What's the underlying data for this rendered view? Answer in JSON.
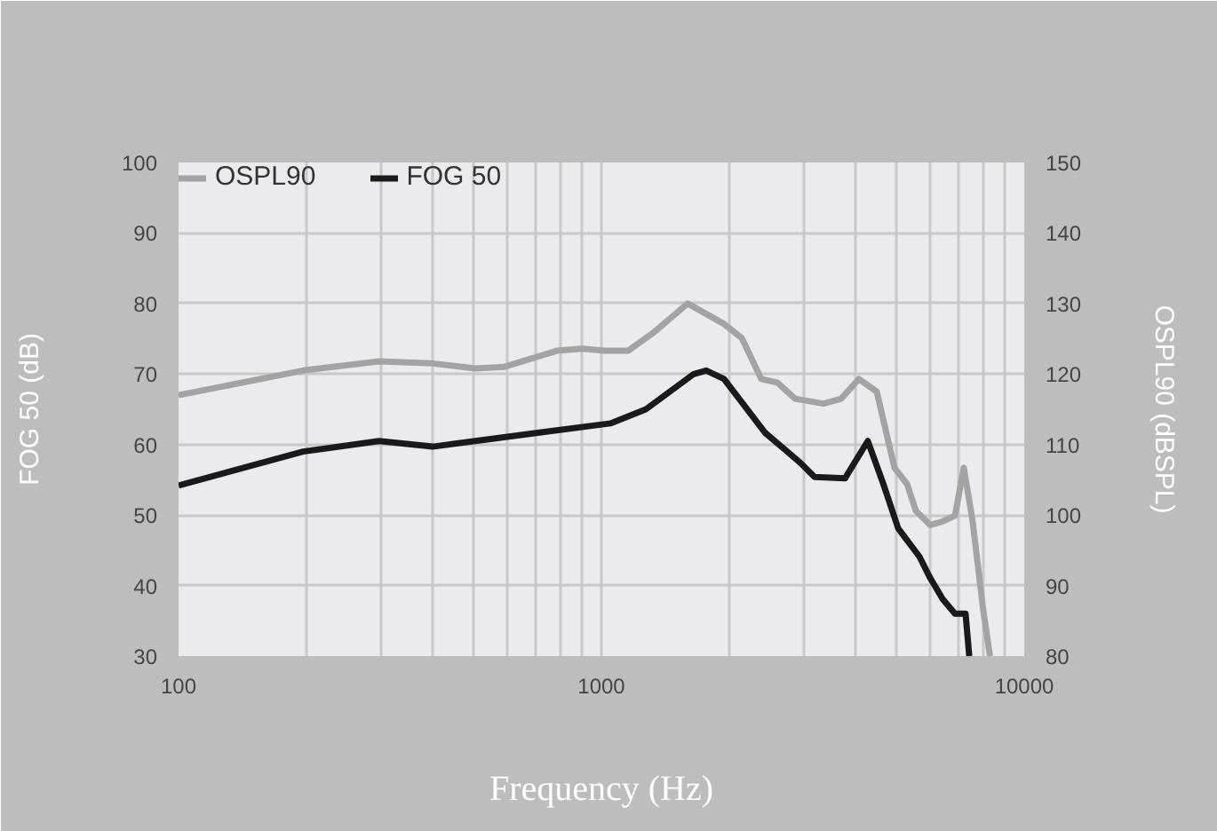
{
  "chart_data": {
    "type": "line",
    "xlabel": "Frequency (Hz)",
    "ylabel": "FOG 50 (dB)",
    "y2label": "OSPL90 (dBSPL)",
    "log": "x",
    "xlim": [
      100,
      10000
    ],
    "xticks": [
      100,
      {
        "value": 200,
        "label": null
      },
      {
        "value": 300,
        "label": null
      },
      {
        "value": 400,
        "label": null
      },
      {
        "value": 500,
        "label": null
      },
      {
        "value": 600,
        "label": null
      },
      {
        "value": 700,
        "label": null
      },
      {
        "value": 800,
        "label": null
      },
      {
        "value": 900,
        "label": null
      },
      1000,
      {
        "value": 2000,
        "label": null
      },
      {
        "value": 3000,
        "label": null
      },
      {
        "value": 4000,
        "label": null
      },
      {
        "value": 5000,
        "label": null
      },
      {
        "value": 6000,
        "label": null
      },
      {
        "value": 7000,
        "label": null
      },
      {
        "value": 8000,
        "label": null
      },
      {
        "value": 9000,
        "label": null
      },
      10000
    ],
    "ylim": [
      30,
      100
    ],
    "yticks": [
      30,
      40,
      50,
      60,
      70,
      80,
      90,
      100
    ],
    "y2lim": [
      80,
      150
    ],
    "y2ticks": [
      80,
      90,
      100,
      110,
      120,
      130,
      140,
      150
    ],
    "grid": true,
    "legend": "top left",
    "line_style": "solid",
    "marker": "none",
    "series": [
      {
        "name": "OSPL90",
        "color": "#a3a3a3",
        "axis": "y2",
        "x": [
          100,
          197,
          298,
          399,
          503,
          587,
          785,
          899,
          1019,
          1156,
          1324,
          1600,
          1950,
          2148,
          2388,
          2606,
          2871,
          3350,
          3690,
          4064,
          4479,
          4934,
          5283,
          5543,
          5989,
          6413,
          6859,
          7195,
          7551,
          8000,
          8300
        ],
        "values": [
          117,
          120.5,
          121.8,
          121.5,
          120.8,
          121,
          123.3,
          123.6,
          123.3,
          123.3,
          125.8,
          130,
          127.1,
          125.1,
          119.3,
          118.8,
          116.5,
          115.8,
          116.5,
          119.3,
          117.5,
          106.7,
          104.4,
          100.6,
          98.6,
          99.1,
          99.9,
          106.7,
          99.1,
          86.5,
          80
        ]
      },
      {
        "name": "FOG 50",
        "color": "#1a1a1a",
        "x": [
          100,
          197,
          298,
          399,
          503,
          713,
          1050,
          1274,
          1653,
          1770,
          1950,
          2436,
          2957,
          3193,
          3767,
          4266,
          4656,
          5035,
          5652,
          5989,
          6413,
          6859,
          7266,
          7413
        ],
        "values": [
          54.2,
          59,
          60.5,
          59.7,
          60.5,
          61.7,
          63,
          65,
          70,
          70.5,
          69.3,
          61.7,
          57.4,
          55.4,
          55.2,
          60.5,
          54.2,
          48.1,
          44.1,
          41.1,
          38.1,
          36,
          36,
          30
        ]
      }
    ]
  }
}
